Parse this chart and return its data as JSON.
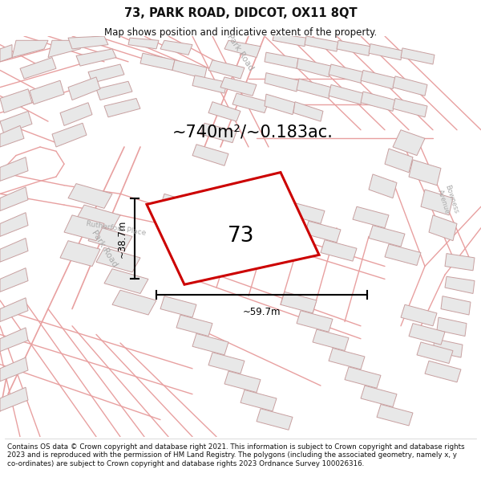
{
  "title": "73, PARK ROAD, DIDCOT, OX11 8QT",
  "subtitle": "Map shows position and indicative extent of the property.",
  "area_text": "~740m²/~0.183ac.",
  "width_label": "~59.7m",
  "height_label": "~38.7m",
  "property_number": "73",
  "footer": "Contains OS data © Crown copyright and database right 2021. This information is subject to Crown copyright and database rights 2023 and is reproduced with the permission of HM Land Registry. The polygons (including the associated geometry, namely x, y co-ordinates) are subject to Crown copyright and database rights 2023 Ordnance Survey 100026316.",
  "bg_color": "#ffffff",
  "map_bg": "#ffffff",
  "street_color": "#e8a0a0",
  "building_fill": "#e8e8e8",
  "building_stroke": "#c8a0a0",
  "property_fill": "#ffffff",
  "property_stroke": "#cc0000",
  "dim_color": "#111111",
  "title_color": "#111111",
  "footer_color": "#111111",
  "street_label_color": "#aaaaaa"
}
